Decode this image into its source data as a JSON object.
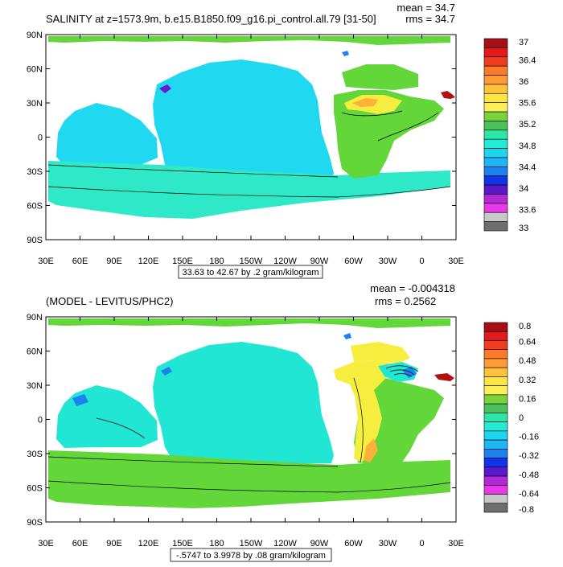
{
  "panel1": {
    "title": "SALINITY at z=1573.9m, b.e15.B1850.f09_g16.pi_control.all.79 [31-50]",
    "mean": "mean = 34.7",
    "rms": "rms = 34.7",
    "range_label": "33.63 to 42.67 by .2 gram/kilogram",
    "colorbar": {
      "labels": [
        "37",
        "36.4",
        "36",
        "35.6",
        "35.2",
        "34.8",
        "34.4",
        "34",
        "33.6",
        "33"
      ],
      "colors": [
        "#a50f15",
        "#e31a1c",
        "#f03b20",
        "#fd7b28",
        "#fd9c34",
        "#fdc23e",
        "#fee541",
        "#f9f05a",
        "#7ad33d",
        "#4cc05a",
        "#2ee6a7",
        "#23ecd5",
        "#20d4ef",
        "#1fb6f5",
        "#1d82f0",
        "#1234e8",
        "#5b18c8",
        "#b12ad8",
        "#e839e8",
        "#c8c8c8",
        "#6e6e6e"
      ]
    }
  },
  "panel2": {
    "title": "(MODEL - LEVITUS/PHC2)",
    "mean": "mean = -0.004318",
    "rms": "rms = 0.2562",
    "range_label": "-.5747 to 3.9978 by .08 gram/kilogram",
    "colorbar": {
      "labels": [
        "0.8",
        "0.64",
        "0.48",
        "0.32",
        "0.16",
        "0",
        "-0.16",
        "-0.32",
        "-0.48",
        "-0.64",
        "-0.8"
      ],
      "colors": [
        "#a50f15",
        "#e31a1c",
        "#f03b20",
        "#fd7b28",
        "#fd9c34",
        "#fdc23e",
        "#fee541",
        "#f9f05a",
        "#7ad33d",
        "#4cc05a",
        "#2ee6a7",
        "#23ecd5",
        "#20d4ef",
        "#1fb6f5",
        "#1d82f0",
        "#1234e8",
        "#5b18c8",
        "#b12ad8",
        "#e839e8",
        "#c8c8c8",
        "#6e6e6e"
      ]
    }
  },
  "axes": {
    "lat_labels": [
      "90N",
      "60N",
      "30N",
      "0",
      "30S",
      "60S",
      "90S"
    ],
    "lon_labels": [
      "30E",
      "60E",
      "90E",
      "120E",
      "150E",
      "180",
      "150W",
      "120W",
      "90W",
      "60W",
      "30W",
      "0",
      "30E"
    ]
  },
  "colors": {
    "ocean1": "#20d8ef",
    "ocean1_south": "#2fe8c8",
    "ocean2": "#22e6d4",
    "green": "#63d63a",
    "yellow": "#f6ee3e",
    "orange": "#fdb03a",
    "blue": "#1d82f0",
    "darkred": "#b01010",
    "purple": "#6a1bd0",
    "land": "#ffffff"
  }
}
